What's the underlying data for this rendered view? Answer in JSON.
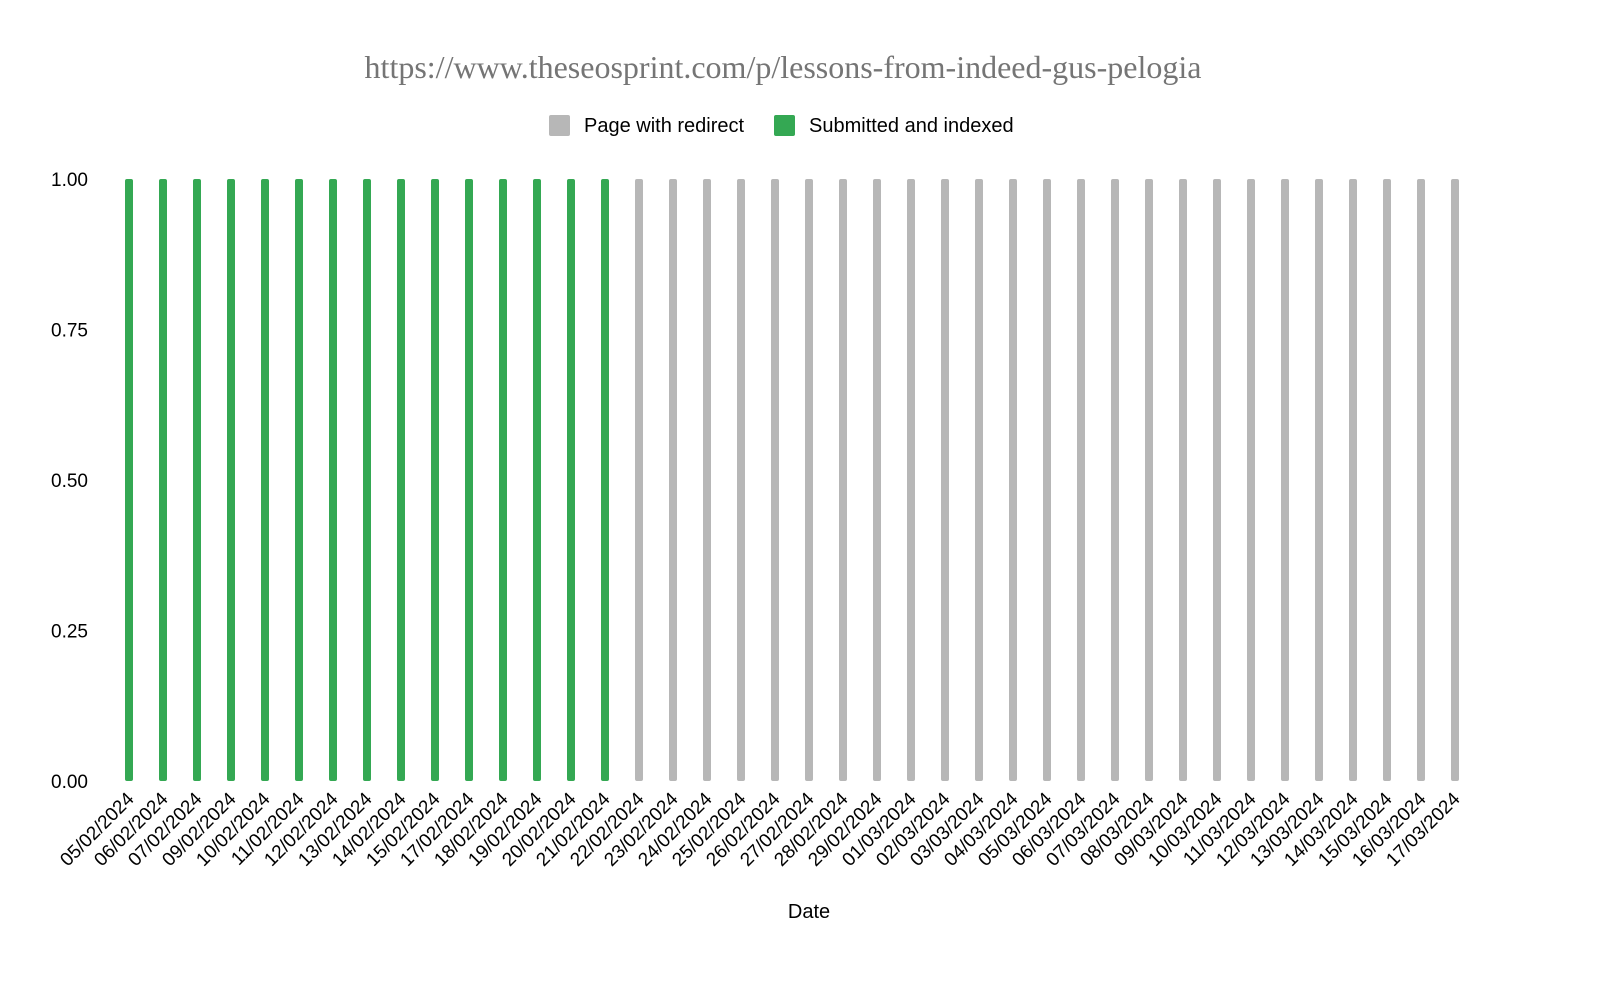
{
  "chart_data": {
    "type": "bar",
    "title": "https://www.theseosprint.com/p/lessons-from-indeed-gus-pelogia",
    "xlabel": "Date",
    "ylabel": "",
    "ylim": [
      0,
      1
    ],
    "yticks": [
      "0.00",
      "0.25",
      "0.50",
      "0.75",
      "1.00"
    ],
    "legend_position": "top",
    "grid": false,
    "categories": [
      "05/02/2024",
      "06/02/2024",
      "07/02/2024",
      "09/02/2024",
      "10/02/2024",
      "11/02/2024",
      "12/02/2024",
      "13/02/2024",
      "14/02/2024",
      "15/02/2024",
      "17/02/2024",
      "18/02/2024",
      "19/02/2024",
      "20/02/2024",
      "21/02/2024",
      "22/02/2024",
      "23/02/2024",
      "24/02/2024",
      "25/02/2024",
      "26/02/2024",
      "27/02/2024",
      "28/02/2024",
      "29/02/2024",
      "01/03/2024",
      "02/03/2024",
      "03/03/2024",
      "04/03/2024",
      "05/03/2024",
      "06/03/2024",
      "07/03/2024",
      "08/03/2024",
      "09/03/2024",
      "10/03/2024",
      "11/03/2024",
      "12/03/2024",
      "13/03/2024",
      "14/03/2024",
      "15/03/2024",
      "16/03/2024",
      "17/03/2024"
    ],
    "series": [
      {
        "name": "Page with redirect",
        "color": "#b7b7b7",
        "values": [
          0,
          0,
          0,
          0,
          0,
          0,
          0,
          0,
          0,
          0,
          0,
          0,
          0,
          0,
          0,
          1,
          1,
          1,
          1,
          1,
          1,
          1,
          1,
          1,
          1,
          1,
          1,
          1,
          1,
          1,
          1,
          1,
          1,
          1,
          1,
          1,
          1,
          1,
          1,
          1
        ]
      },
      {
        "name": "Submitted and indexed",
        "color": "#34a853",
        "values": [
          1,
          1,
          1,
          1,
          1,
          1,
          1,
          1,
          1,
          1,
          1,
          1,
          1,
          1,
          1,
          0,
          0,
          0,
          0,
          0,
          0,
          0,
          0,
          0,
          0,
          0,
          0,
          0,
          0,
          0,
          0,
          0,
          0,
          0,
          0,
          0,
          0,
          0,
          0,
          0
        ]
      }
    ]
  }
}
